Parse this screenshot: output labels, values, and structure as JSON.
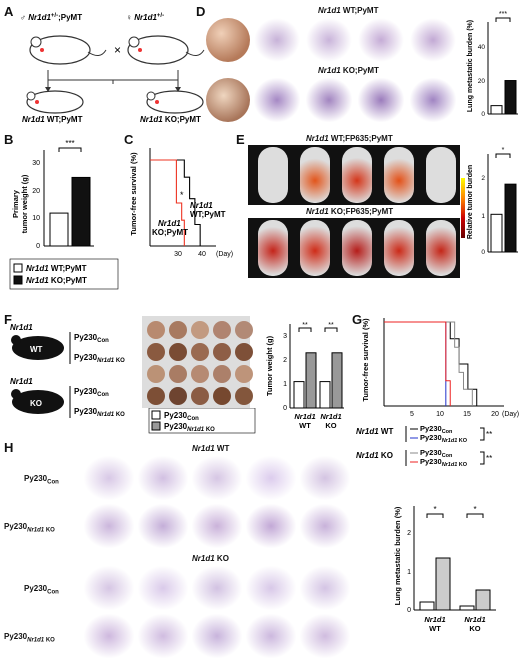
{
  "panels": {
    "A": {
      "letter": "A",
      "male": "♂ Nr1d1+/-;PyMT",
      "female": "♀ Nr1d1+/-",
      "cross": "×",
      "wt": "WT;PyMT",
      "ko": "KO;PyMT",
      "gene": "Nr1d1"
    },
    "B": {
      "letter": "B",
      "ylabel": "Primary tumor weight (g)",
      "yticks": [
        "0",
        "10",
        "20",
        "30"
      ],
      "sig": "***",
      "legend_wt": "WT;PyMT",
      "legend_ko": "KO;PyMT",
      "gene": "Nr1d1"
    },
    "C": {
      "letter": "C",
      "ylabel": "Tumor-free survival (%)",
      "xlabel": "(Day)",
      "xticks": [
        "30",
        "40"
      ],
      "label_wt": "WT;PyMT",
      "label_ko": "KO;PyMT",
      "gene": "Nr1d1",
      "sig": "*"
    },
    "D": {
      "letter": "D",
      "title_wt": "WT;PyMT",
      "title_ko": "KO;PyMT",
      "gene": "Nr1d1",
      "ylabel": "Lung metastatic burden (%)",
      "yticks": [
        "0",
        "20",
        "40"
      ],
      "sig": "***"
    },
    "E": {
      "letter": "E",
      "title_wt": "WT;FP635;PyMT",
      "title_ko": "KO;FP635;PyMT",
      "gene": "Nr1d1",
      "ylabel": "Relative tumor burden",
      "yticks": [
        "0",
        "1",
        "2"
      ],
      "sig": "*"
    },
    "F": {
      "letter": "F",
      "wt": "WT",
      "ko": "KO",
      "gene": "Nr1d1",
      "py230con": "Py230",
      "con_sub": "Con",
      "py230ko": "Py230",
      "ko_sub": "KO",
      "ylabel": "Tumor weight (g)",
      "yticks": [
        "0",
        "1",
        "2",
        "3"
      ],
      "sig1": "**",
      "sig2": "**",
      "xlab_wt": "WT",
      "xlab_ko": "KO",
      "legend_con": "Py230",
      "legend_ko": "Py230"
    },
    "G": {
      "letter": "G",
      "ylabel": "Tumor-free survival (%)",
      "xticks": [
        "5",
        "10",
        "15",
        "20"
      ],
      "xlabel": "(Day)",
      "wt": "WT",
      "ko": "KO",
      "gene": "Nr1d1",
      "sig1": "**",
      "sig2": "**",
      "py230": "Py230",
      "con_sub": "Con",
      "ko_sub": "KO"
    },
    "H": {
      "letter": "H",
      "title_wt": "WT",
      "title_ko": "KO",
      "gene": "Nr1d1",
      "row_con": "Py230",
      "row_ko": "Py230",
      "con_sub": "Con",
      "ko_sub": "KO",
      "ylabel": "Lung metastatic burden (%)",
      "yticks": [
        "0",
        "1",
        "2"
      ],
      "sig1": "*",
      "sig2": "*",
      "xlab_wt": "WT",
      "xlab_ko": "KO"
    }
  },
  "chart_data": [
    {
      "type": "bar",
      "panel": "B",
      "categories": [
        "Nr1d1 WT;PyMT",
        "Nr1d1 KO;PyMT"
      ],
      "values": [
        12,
        25
      ],
      "ylabel": "Primary tumor weight (g)",
      "ylim": [
        0,
        35
      ]
    },
    {
      "type": "line",
      "panel": "C",
      "series": [
        {
          "name": "Nr1d1 WT;PyMT",
          "x": [
            0,
            31,
            33,
            35,
            37,
            39
          ],
          "y": [
            100,
            100,
            80,
            55,
            25,
            0
          ]
        },
        {
          "name": "Nr1d1 KO;PyMT",
          "x": [
            0,
            28,
            30,
            32,
            33
          ],
          "y": [
            100,
            100,
            50,
            30,
            0
          ]
        }
      ],
      "ylabel": "Tumor-free survival (%)",
      "xlabel": "(Day)"
    },
    {
      "type": "bar",
      "panel": "D",
      "categories": [
        "Nr1d1 WT;PyMT",
        "Nr1d1 KO;PyMT"
      ],
      "values": [
        5,
        20
      ],
      "ylabel": "Lung metastatic burden (%)",
      "ylim": [
        0,
        55
      ]
    },
    {
      "type": "bar",
      "panel": "E",
      "categories": [
        "Nr1d1 WT;FP635;PyMT",
        "Nr1d1 KO;FP635;PyMT"
      ],
      "values": [
        1.0,
        1.8
      ],
      "ylabel": "Relative tumor burden",
      "ylim": [
        0,
        2.6
      ]
    },
    {
      "type": "bar",
      "panel": "F",
      "categories": [
        "Nr1d1 WT",
        "Nr1d1 KO"
      ],
      "series": [
        {
          "name": "Py230 Con",
          "values": [
            1.1,
            1.1
          ]
        },
        {
          "name": "Py230 Nr1d1 KO",
          "values": [
            2.3,
            2.3
          ]
        }
      ],
      "ylabel": "Tumor weight (g)",
      "ylim": [
        0,
        3.5
      ]
    },
    {
      "type": "line",
      "panel": "G",
      "series": [
        {
          "name": "Nr1d1 WT Py230 Con",
          "x": [
            0,
            14,
            15,
            17,
            19,
            21
          ],
          "y": [
            100,
            100,
            80,
            50,
            20,
            0
          ]
        },
        {
          "name": "Nr1d1 WT Py230 Nr1d1 KO",
          "x": [
            0,
            13,
            14
          ],
          "y": [
            100,
            100,
            0
          ]
        },
        {
          "name": "Nr1d1 KO Py230 Con",
          "x": [
            0,
            15,
            16,
            17,
            18,
            20
          ],
          "y": [
            100,
            100,
            70,
            40,
            20,
            0
          ]
        },
        {
          "name": "Nr1d1 KO Py230 Nr1d1 KO",
          "x": [
            0,
            13,
            14,
            15
          ],
          "y": [
            100,
            100,
            30,
            0
          ]
        }
      ],
      "xlabel": "(Day)",
      "ylabel": "Tumor-free survival (%)"
    },
    {
      "type": "bar",
      "panel": "H",
      "categories": [
        "Nr1d1 WT",
        "Nr1d1 KO"
      ],
      "series": [
        {
          "name": "Py230 Con",
          "values": [
            0.2,
            0.1
          ]
        },
        {
          "name": "Py230 Nr1d1 KO",
          "values": [
            1.3,
            0.5
          ]
        }
      ],
      "ylabel": "Lung metastatic burden (%)",
      "ylim": [
        0,
        2.6
      ]
    }
  ]
}
